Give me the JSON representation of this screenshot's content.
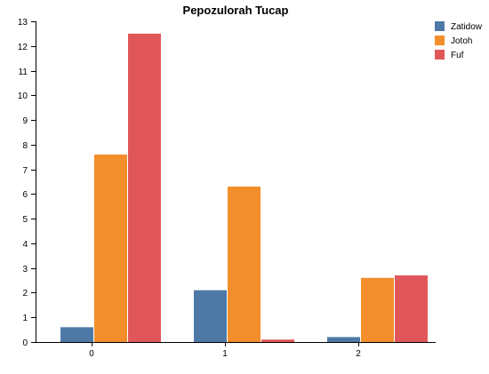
{
  "chart_data": {
    "type": "bar",
    "title": "Pepozulorah Tucap",
    "xlabel": "",
    "ylabel": "",
    "categories": [
      "0",
      "1",
      "2"
    ],
    "ylim": [
      0,
      13
    ],
    "yticks": [
      0,
      1,
      2,
      3,
      4,
      5,
      6,
      7,
      8,
      9,
      10,
      11,
      12,
      13
    ],
    "grid": false,
    "legend_position": "top-right",
    "series": [
      {
        "name": "Zatidow",
        "color": "#4e79a7",
        "values": [
          0.6,
          2.1,
          0.2
        ]
      },
      {
        "name": "Jotoh",
        "color": "#f28e2b",
        "values": [
          7.6,
          6.3,
          2.6
        ]
      },
      {
        "name": "Fuf",
        "color": "#e15759",
        "values": [
          12.5,
          0.1,
          2.7
        ]
      }
    ]
  }
}
